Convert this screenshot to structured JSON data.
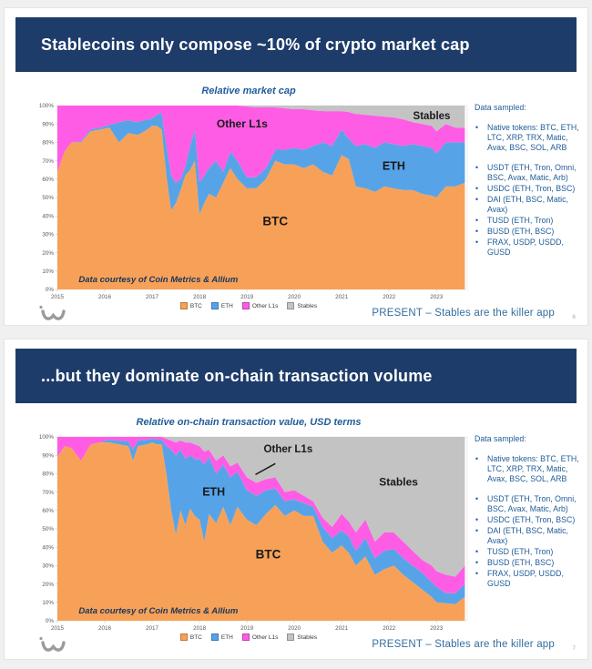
{
  "slides": [
    {
      "title": "Stablecoins only compose ~10% of crypto market cap",
      "sidebar": {
        "heading": "Data sampled:",
        "primary_bullets": [
          "Native tokens: BTC, ETH, LTC, XRP, TRX, Matic, Avax, BSC, SOL, ARB"
        ],
        "stablecoin_bullets": [
          "USDT (ETH, Tron, Omni, BSC, Avax, Matic, Arb)",
          "USDC (ETH, Tron, BSC)",
          "DAI (ETH, BSC, Matic, Avax)",
          "TUSD (ETH, Tron)",
          "BUSD (ETH, BSC)",
          "FRAX, USDP, USDD, GUSD"
        ]
      },
      "footer": {
        "label": "PRESENT – Stables are the killer app",
        "page": "6"
      }
    },
    {
      "title": "...but they dominate on-chain transaction volume",
      "sidebar": {
        "heading": "Data sampled:",
        "primary_bullets": [
          "Native tokens: BTC, ETH, LTC, XRP, TRX, Matic, Avax, BSC, SOL, ARB"
        ],
        "stablecoin_bullets": [
          "USDT (ETH, Tron, Omni, BSC, Avax, Matic, Arb)",
          "USDC (ETH, Tron, BSC)",
          "DAI (ETH, BSC, Matic, Avax)",
          "TUSD (ETH, Tron)",
          "BUSD (ETH, BSC)",
          "FRAX, USDP, USDD, GUSD"
        ]
      },
      "footer": {
        "label": "PRESENT – Stables are the killer app",
        "page": "7"
      }
    }
  ],
  "colors": {
    "header_navy": "#1d3c69",
    "btc_orange": "#f7a158",
    "eth_blue": "#57a3e8",
    "other_l1s_magenta": "#fe5ce4",
    "stables_gray": "#c3c3c3",
    "footer_blue": "#336e9e",
    "source_note_navy": "#17365d"
  },
  "chart_data": [
    {
      "type": "area",
      "stacked": true,
      "title": "Relative market cap",
      "unit": "percent of total crypto market cap",
      "grid": false,
      "legend_position": "bottom",
      "xlim": [
        2015,
        2023.65
      ],
      "ylim": [
        0,
        100
      ],
      "xticks": [
        2015,
        2016,
        2017,
        2018,
        2019,
        2020,
        2021,
        2022,
        2023
      ],
      "yticks": [
        0,
        10,
        20,
        30,
        40,
        50,
        60,
        70,
        80,
        90,
        100
      ],
      "x": [
        2015.0,
        2015.15,
        2015.3,
        2015.5,
        2015.7,
        2015.9,
        2016.1,
        2016.3,
        2016.5,
        2016.7,
        2016.9,
        2017.0,
        2017.1,
        2017.2,
        2017.3,
        2017.4,
        2017.5,
        2017.6,
        2017.7,
        2017.8,
        2017.9,
        2018.0,
        2018.1,
        2018.2,
        2018.35,
        2018.5,
        2018.65,
        2018.8,
        2019.0,
        2019.2,
        2019.4,
        2019.6,
        2019.8,
        2020.0,
        2020.2,
        2020.4,
        2020.6,
        2020.8,
        2021.0,
        2021.15,
        2021.3,
        2021.5,
        2021.7,
        2021.9,
        2022.1,
        2022.3,
        2022.5,
        2022.7,
        2022.9,
        2023.0,
        2023.2,
        2023.4,
        2023.6
      ],
      "series": [
        {
          "name": "BTC",
          "color": "#f7a158",
          "values": [
            64,
            75,
            80,
            80,
            86,
            87,
            88,
            80,
            85,
            84,
            87,
            89,
            89,
            87,
            62,
            43,
            47,
            54,
            62,
            65,
            70,
            41,
            47,
            52,
            50,
            58,
            66,
            60,
            55,
            55,
            60,
            70,
            68,
            68,
            66,
            68,
            64,
            62,
            73,
            71,
            56,
            55,
            53,
            56,
            55,
            54,
            54,
            52,
            51,
            50,
            56,
            56,
            58
          ]
        },
        {
          "name": "ETH",
          "color": "#57a3e8",
          "values": [
            0,
            0,
            0,
            0.5,
            1,
            1,
            1.5,
            11,
            7,
            7,
            5.5,
            4,
            6,
            9,
            16,
            19,
            11,
            6,
            5,
            13,
            17,
            17,
            15,
            14,
            20,
            6,
            9,
            10,
            6,
            6,
            6,
            6,
            8,
            9,
            10,
            10,
            16,
            16,
            14,
            11,
            22,
            24,
            24,
            24,
            24,
            24,
            25,
            26,
            26,
            24,
            24,
            24,
            22
          ]
        },
        {
          "name": "Other L1s",
          "color": "#fe5ce4",
          "values": [
            36,
            25,
            20,
            19.5,
            13,
            12,
            10.5,
            9,
            8,
            9,
            7.5,
            7,
            5,
            4,
            22,
            38,
            42,
            40,
            33,
            22,
            13,
            42,
            38,
            34,
            30,
            36,
            25,
            30,
            38.5,
            38,
            33,
            23,
            22.5,
            21,
            22,
            19.5,
            17,
            19,
            10,
            14.5,
            17.5,
            16,
            17.5,
            14,
            14.5,
            14.5,
            12,
            12,
            12,
            12,
            10,
            8,
            8
          ]
        },
        {
          "name": "Stables",
          "color": "#c3c3c3",
          "values": [
            0,
            0,
            0,
            0,
            0,
            0,
            0,
            0,
            0,
            0,
            0,
            0,
            0,
            0,
            0,
            0,
            0,
            0,
            0,
            0,
            0,
            0,
            0,
            0,
            0,
            0,
            0,
            0,
            0.5,
            1,
            1,
            1,
            1.5,
            2,
            2,
            2.5,
            3,
            3,
            3,
            3.5,
            4.5,
            5,
            5.5,
            6,
            6.5,
            7.5,
            9,
            10,
            11,
            14,
            10,
            12,
            12
          ]
        }
      ],
      "annotations": [
        {
          "text": "Other L1s",
          "x": 2018.9,
          "y": 88,
          "size": 12
        },
        {
          "text": "ETH",
          "x": 2022.1,
          "y": 65,
          "size": 12.5
        },
        {
          "text": "BTC",
          "x": 2019.6,
          "y": 35,
          "size": 13.5
        },
        {
          "text": "Stables",
          "x": 2022.9,
          "y": 92.5,
          "size": 11.5
        }
      ],
      "leader_line": null,
      "source_note": "Data courtesy of Coin Metrics & Allium"
    },
    {
      "type": "area",
      "stacked": true,
      "title": "Relative on-chain transaction value, USD terms",
      "unit": "percent of total on-chain transaction value",
      "grid": false,
      "legend_position": "bottom",
      "xlim": [
        2015,
        2023.65
      ],
      "ylim": [
        0,
        100
      ],
      "xticks": [
        2015,
        2016,
        2017,
        2018,
        2019,
        2020,
        2021,
        2022,
        2023
      ],
      "yticks": [
        0,
        10,
        20,
        30,
        40,
        50,
        60,
        70,
        80,
        90,
        100
      ],
      "x": [
        2015.0,
        2015.15,
        2015.3,
        2015.5,
        2015.7,
        2015.9,
        2016.1,
        2016.3,
        2016.5,
        2016.6,
        2016.7,
        2016.9,
        2017.0,
        2017.1,
        2017.2,
        2017.3,
        2017.4,
        2017.5,
        2017.6,
        2017.7,
        2017.8,
        2017.9,
        2018.0,
        2018.1,
        2018.2,
        2018.35,
        2018.5,
        2018.65,
        2018.8,
        2019.0,
        2019.2,
        2019.4,
        2019.6,
        2019.8,
        2020.0,
        2020.2,
        2020.4,
        2020.6,
        2020.8,
        2021.0,
        2021.15,
        2021.3,
        2021.5,
        2021.7,
        2021.9,
        2022.1,
        2022.3,
        2022.5,
        2022.7,
        2022.9,
        2023.0,
        2023.2,
        2023.4,
        2023.6
      ],
      "series": [
        {
          "name": "BTC",
          "color": "#f7a158",
          "values": [
            89,
            95,
            94,
            87,
            96,
            97,
            97,
            96,
            95,
            87,
            95,
            96,
            97,
            96,
            96,
            80,
            60,
            47,
            60,
            52,
            61,
            57,
            55,
            43,
            58,
            53,
            62,
            52,
            62,
            55,
            52,
            58,
            63,
            57,
            60,
            57,
            57,
            43,
            37,
            41,
            37,
            30,
            35,
            25,
            28,
            30,
            25,
            21,
            17,
            13,
            10,
            9.5,
            9,
            13
          ]
        },
        {
          "name": "ETH",
          "color": "#57a3e8",
          "values": [
            0,
            0,
            0,
            0,
            0,
            0,
            1.5,
            2,
            2.5,
            6,
            3,
            2.5,
            2,
            2.5,
            2.5,
            15,
            33,
            43,
            33,
            36,
            29,
            31,
            33,
            42,
            31,
            27,
            23,
            26,
            19,
            16,
            16,
            13,
            9,
            8,
            6,
            7,
            5,
            8,
            8,
            8,
            9,
            8,
            10,
            9,
            10,
            9,
            9,
            9,
            9,
            8,
            8.5,
            5.5,
            6,
            7
          ]
        },
        {
          "name": "Other L1s",
          "color": "#fe5ce4",
          "values": [
            11,
            5,
            6,
            13,
            4,
            3,
            1.5,
            2,
            2.5,
            7,
            2,
            1.5,
            1,
            1.5,
            1.5,
            4,
            5,
            7,
            5,
            9,
            7,
            8,
            7,
            7,
            4,
            7,
            5,
            6,
            5,
            7,
            7,
            6,
            6,
            5,
            5,
            4,
            3,
            5,
            6,
            9,
            8,
            10,
            10,
            9,
            10,
            9,
            9,
            8,
            7,
            9,
            8.5,
            10,
            9,
            10
          ]
        },
        {
          "name": "Stables",
          "color": "#c3c3c3",
          "values": [
            0,
            0,
            0,
            0,
            0,
            0,
            0,
            0,
            0,
            0,
            0,
            0,
            0,
            0,
            0,
            1,
            2,
            3,
            2,
            3,
            3,
            4,
            5,
            8,
            7,
            13,
            10,
            16,
            14,
            22,
            25,
            23,
            22,
            30,
            29,
            32,
            35,
            44,
            49,
            42,
            46,
            52,
            45,
            57,
            52,
            52,
            57,
            62,
            67,
            70,
            73,
            75,
            76,
            70
          ]
        }
      ],
      "annotations": [
        {
          "text": "Other L1s",
          "x": 2019.87,
          "y": 91.5,
          "size": 11.5
        },
        {
          "text": "ETH",
          "x": 2018.3,
          "y": 68,
          "size": 12.5
        },
        {
          "text": "BTC",
          "x": 2019.45,
          "y": 34,
          "size": 13.5
        },
        {
          "text": "Stables",
          "x": 2022.2,
          "y": 73.5,
          "size": 12
        }
      ],
      "leader_line": {
        "x1": 2019.6,
        "y1": 85.5,
        "x2": 2019.18,
        "y2": 79.5
      },
      "source_note": "Data courtesy of Coin Metrics & Allium"
    }
  ]
}
